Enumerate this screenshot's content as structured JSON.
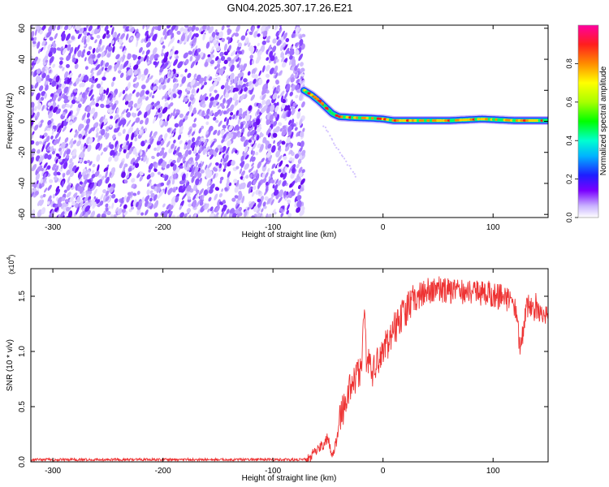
{
  "page": {
    "title": "GN04.2025.307.17.26.E21"
  },
  "chart_data": [
    {
      "type": "heatmap",
      "title": "GN04.2025.307.17.26.E21",
      "xlabel": "Height of straight line (km)",
      "ylabel": "Frequency (Hz)",
      "xlim": [
        -320,
        150
      ],
      "ylim": [
        -62,
        62
      ],
      "xticks": [
        -300,
        -200,
        -100,
        0,
        100
      ],
      "yticks": [
        -60,
        -40,
        -20,
        0,
        20,
        40,
        60
      ],
      "xtick_labels": [
        "-300",
        "-200",
        "-100",
        "0",
        "100"
      ],
      "ytick_labels": [
        "-60",
        "-40",
        "-20",
        "0",
        "20",
        "40",
        "60"
      ],
      "noise_region_x": [
        -320,
        -72
      ],
      "dominant_frequency_track": {
        "x": [
          -72,
          -65,
          -58,
          -52,
          -46,
          -40,
          -30,
          -20,
          -10,
          0,
          10,
          30,
          60,
          90,
          120,
          150
        ],
        "y": [
          20,
          17,
          13,
          9,
          5,
          3,
          2.5,
          2.2,
          2,
          1.5,
          0.5,
          0.5,
          0.5,
          1.5,
          0.5,
          0.5
        ]
      },
      "colorbar": {
        "label": "Normalized spectral amplitude",
        "range": [
          0,
          1
        ],
        "ticks": [
          0.0,
          0.2,
          0.4,
          0.6,
          0.8
        ],
        "tick_labels": [
          "0.0",
          "0.2",
          "0.4",
          "0.6",
          "0.8"
        ]
      }
    },
    {
      "type": "line",
      "xlabel": "Height of straight line (km)",
      "ylabel": "SNR (10 * v/v)",
      "scale_label": "(x10",
      "scale_exponent": "4",
      "xlim": [
        -320,
        150
      ],
      "ylim": [
        0,
        1.75
      ],
      "xticks": [
        -300,
        -200,
        -100,
        0,
        100
      ],
      "yticks": [
        0.0,
        0.5,
        1.0,
        1.5
      ],
      "xtick_labels": [
        "-300",
        "-200",
        "-100",
        "0",
        "100"
      ],
      "ytick_labels": [
        "0.0",
        "0.5",
        "1.0",
        "1.5"
      ],
      "color": "#ee3333",
      "series": [
        {
          "name": "SNR",
          "x": [
            -320,
            -70,
            -62,
            -55,
            -50,
            -46,
            -42,
            -38,
            -33,
            -28,
            -24,
            -20,
            -17,
            -15,
            -12,
            -10,
            -8,
            -5,
            0,
            5,
            10,
            15,
            20,
            25,
            30,
            35,
            40,
            50,
            60,
            70,
            80,
            90,
            100,
            110,
            120,
            125,
            130,
            140,
            150
          ],
          "y": [
            0.02,
            0.02,
            0.08,
            0.15,
            0.22,
            0.05,
            0.2,
            0.45,
            0.6,
            0.7,
            0.78,
            0.82,
            1.38,
            0.88,
            0.95,
            0.75,
            0.85,
            0.92,
            1.0,
            1.1,
            1.2,
            1.28,
            1.35,
            1.42,
            1.48,
            1.52,
            1.55,
            1.57,
            1.55,
            1.55,
            1.54,
            1.53,
            1.52,
            1.48,
            1.44,
            1.0,
            1.4,
            1.38,
            1.36
          ]
        }
      ]
    }
  ]
}
